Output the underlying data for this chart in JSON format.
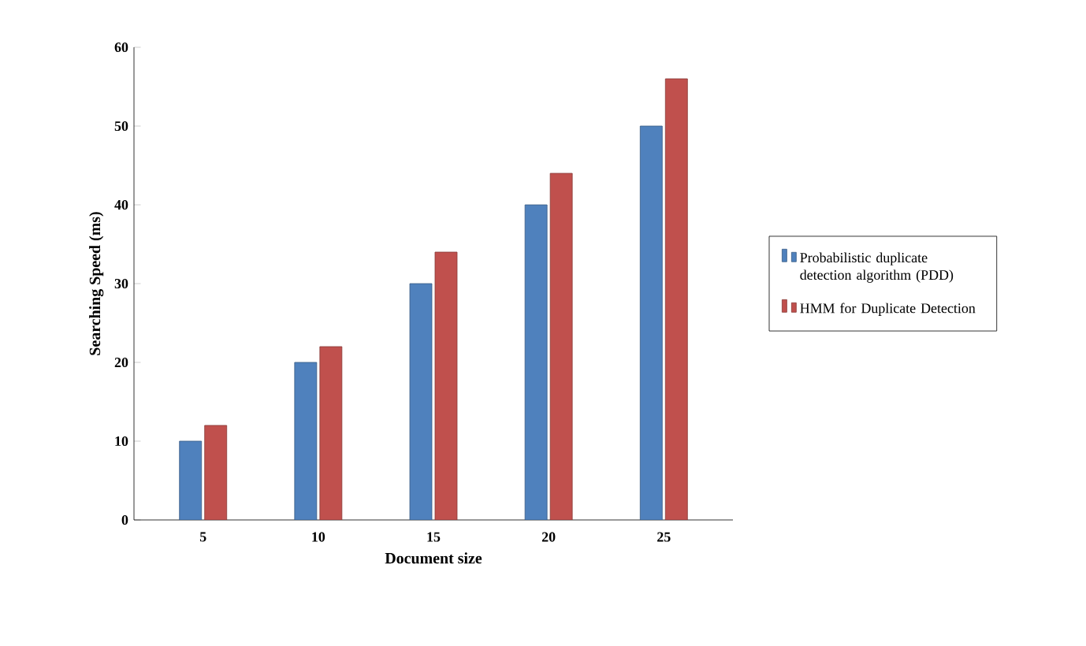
{
  "chart_data": {
    "type": "bar",
    "xlabel": "Document size",
    "ylabel": "Searching Speed (ms)",
    "categories": [
      "5",
      "10",
      "15",
      "20",
      "25"
    ],
    "series": [
      {
        "name": "Probabilistic duplicate detection algorithm (PDD)",
        "color": "#4f81bd",
        "values": [
          10,
          20,
          30,
          40,
          50
        ]
      },
      {
        "name": "HMM for Duplicate Detection",
        "color": "#c0504d",
        "values": [
          12,
          22,
          34,
          44,
          56
        ]
      }
    ],
    "ylim": [
      0,
      60
    ],
    "yticks": [
      0,
      10,
      20,
      30,
      40,
      50,
      60
    ],
    "grid": false,
    "legend": "right"
  }
}
